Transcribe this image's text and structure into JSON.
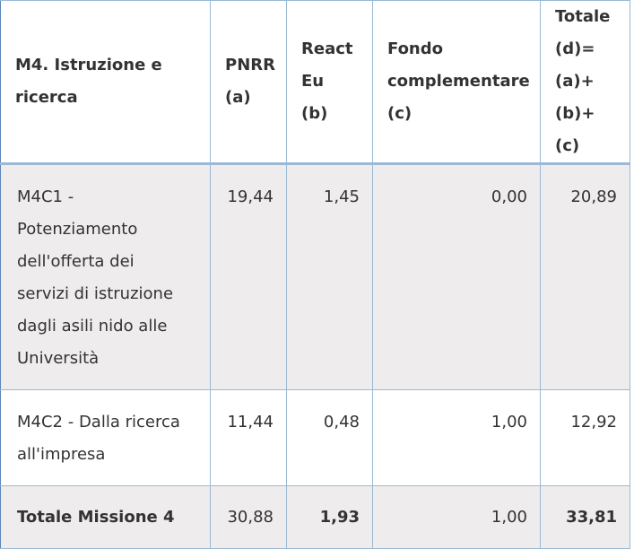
{
  "table": {
    "headers": [
      "M4. Istruzione e ricerca",
      "PNRR (a)",
      "React Eu (b)",
      "Fondo complementare (c)",
      "Totale (d)= (a)+ (b)+(c)"
    ],
    "header_lines": {
      "col1": [
        "M4. Istruzione e",
        "ricerca"
      ],
      "col2": [
        "PNRR",
        "(a)"
      ],
      "col3": [
        "React",
        "Eu",
        "(b)"
      ],
      "col4": [
        "Fondo",
        "complementare",
        "(c)"
      ],
      "col5": [
        "Totale",
        "(d)=",
        "(a)+",
        "(b)+(c)"
      ]
    },
    "rows": [
      {
        "label_lines": [
          "M4C1 -",
          "Potenziamento",
          "dell'offerta dei",
          "servizi di istruzione",
          "dagli asili nido alle",
          "Università"
        ],
        "pnrr": "19,44",
        "react_eu": "1,45",
        "fondo": "0,00",
        "totale": "20,89"
      },
      {
        "label_lines": [
          "M4C2 - Dalla ricerca",
          "all'impresa"
        ],
        "pnrr": "11,44",
        "react_eu": "0,48",
        "fondo": "1,00",
        "totale": "12,92"
      },
      {
        "label_lines": [
          "Totale Missione 4"
        ],
        "pnrr": "30,88",
        "react_eu": "1,93",
        "fondo": "1,00",
        "totale": "33,81"
      }
    ]
  },
  "colors": {
    "border": "#9ab9d6",
    "row_shade": "#eeecec",
    "text": "#333333"
  }
}
